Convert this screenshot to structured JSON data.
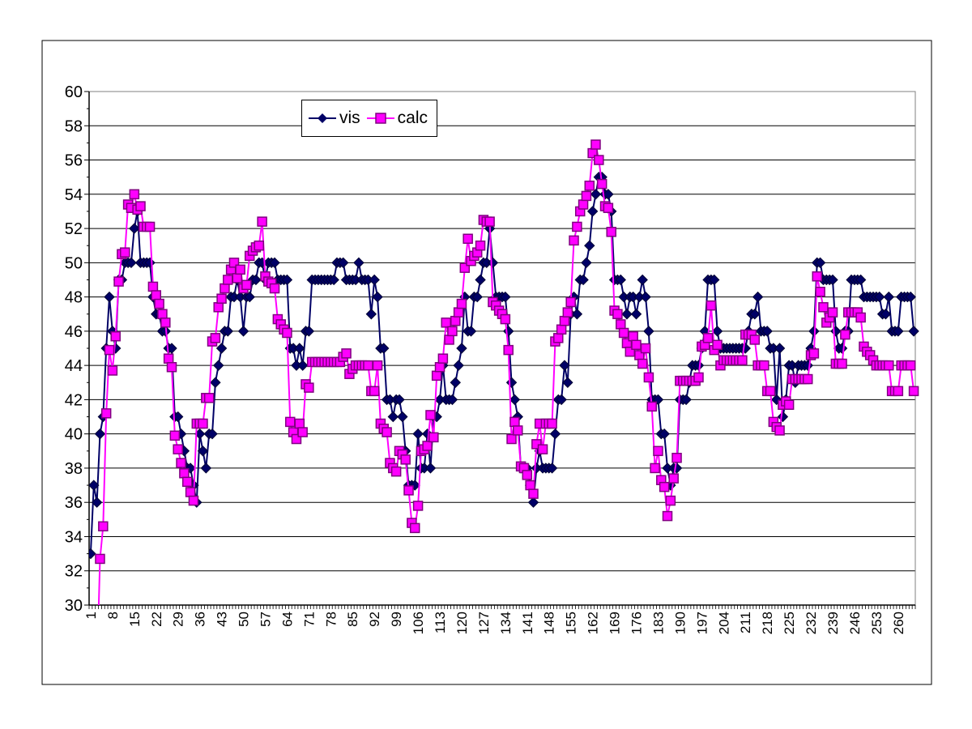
{
  "chart_data": {
    "type": "line",
    "title": "",
    "xlabel": "",
    "ylabel": "",
    "ylim": [
      30,
      60
    ],
    "yticks": [
      30,
      32,
      34,
      36,
      38,
      40,
      42,
      44,
      46,
      48,
      50,
      52,
      54,
      56,
      58,
      60
    ],
    "x_tick_labels": [
      "1",
      "8",
      "15",
      "22",
      "29",
      "36",
      "43",
      "50",
      "57",
      "64",
      "71",
      "78",
      "85",
      "92",
      "99",
      "106",
      "113",
      "120",
      "127",
      "134",
      "141",
      "148",
      "155",
      "162",
      "169",
      "176",
      "183",
      "190",
      "197",
      "204",
      "211",
      "218",
      "225",
      "232",
      "239",
      "246",
      "253",
      "260"
    ],
    "x_start": 1,
    "x_step": 1,
    "grid": "horizontal major gridlines",
    "legend_position": "top-left",
    "series": [
      {
        "name": "vis",
        "color": "#000066",
        "marker": "diamond",
        "values": [
          33,
          37,
          36,
          40,
          41,
          45,
          48,
          46,
          45,
          49,
          49,
          50,
          50,
          50,
          52,
          53,
          50,
          50,
          50,
          50,
          48,
          47,
          47,
          46,
          46,
          45,
          45,
          41,
          41,
          40,
          39,
          38,
          38,
          37,
          36,
          40,
          39,
          38,
          40,
          40,
          43,
          44,
          45,
          46,
          46,
          48,
          48,
          49,
          48,
          46,
          48,
          48,
          49,
          49,
          50,
          50,
          49,
          50,
          50,
          50,
          49,
          49,
          49,
          49,
          45,
          45,
          44,
          45,
          44,
          46,
          46,
          49,
          49,
          49,
          49,
          49,
          49,
          49,
          49,
          50,
          50,
          50,
          49,
          49,
          49,
          49,
          50,
          49,
          49,
          49,
          47,
          49,
          48,
          45,
          45,
          42,
          42,
          41,
          42,
          42,
          41,
          39,
          37,
          37,
          37,
          40,
          38,
          38,
          40,
          38,
          41,
          41,
          42,
          44,
          42,
          42,
          42,
          43,
          44,
          45,
          48,
          46,
          46,
          48,
          48,
          49,
          50,
          50,
          52,
          50,
          48,
          48,
          48,
          48,
          46,
          43,
          42,
          41,
          38,
          38,
          38,
          37,
          36,
          38,
          39,
          38,
          38,
          38,
          38,
          40,
          42,
          42,
          44,
          43,
          47,
          48,
          47,
          49,
          49,
          50,
          51,
          53,
          54,
          55,
          55,
          54,
          54,
          53,
          49,
          49,
          49,
          48,
          47,
          48,
          48,
          47,
          48,
          49,
          48,
          46,
          42,
          42,
          42,
          40,
          40,
          38,
          37,
          38,
          38,
          42,
          42,
          42,
          43,
          44,
          44,
          44,
          45,
          46,
          49,
          49,
          49,
          46,
          45,
          45,
          45,
          45,
          45,
          45,
          45,
          45,
          45,
          46,
          47,
          47,
          48,
          46,
          46,
          46,
          45,
          45,
          42,
          45,
          41,
          42,
          44,
          44,
          43,
          44,
          44,
          44,
          44,
          45,
          46,
          50,
          50,
          49,
          49,
          49,
          49,
          46,
          45,
          45,
          46,
          46,
          49,
          49,
          49,
          49,
          48,
          48,
          48,
          48,
          48,
          48,
          47,
          47,
          48,
          46,
          46,
          46,
          48,
          48,
          48,
          48,
          46
        ]
      },
      {
        "name": "calc",
        "color": "#FF00FF",
        "marker": "square",
        "values": [
          null,
          null,
          26,
          32.7,
          34.6,
          41.2,
          44.9,
          43.7,
          45.7,
          48.9,
          50.5,
          50.6,
          53.4,
          53.2,
          54.0,
          53.1,
          53.3,
          52.1,
          52.1,
          52.1,
          48.6,
          48.1,
          47.6,
          47.0,
          46.5,
          44.4,
          43.9,
          39.9,
          39.1,
          38.3,
          37.7,
          37.2,
          36.6,
          36.1,
          40.6,
          40.6,
          40.6,
          42.1,
          42.1,
          45.4,
          45.6,
          47.4,
          47.9,
          48.5,
          49.0,
          49.6,
          50.0,
          49.1,
          49.6,
          48.5,
          48.7,
          50.4,
          50.7,
          50.9,
          51.0,
          52.4,
          49.2,
          48.9,
          48.8,
          48.5,
          46.7,
          46.4,
          46.1,
          45.9,
          40.7,
          40.1,
          39.7,
          40.6,
          40.1,
          42.9,
          42.7,
          44.2,
          44.2,
          44.2,
          44.2,
          44.2,
          44.2,
          44.2,
          44.2,
          44.2,
          44.2,
          44.5,
          44.7,
          43.5,
          43.8,
          44.0,
          44.0,
          44.0,
          44.0,
          44.0,
          42.5,
          42.5,
          44.0,
          40.6,
          40.3,
          40.1,
          38.3,
          38.0,
          37.8,
          39.0,
          38.8,
          38.5,
          36.7,
          34.8,
          34.5,
          35.8,
          39.0,
          39.1,
          39.3,
          41.1,
          39.8,
          43.4,
          43.9,
          44.4,
          46.5,
          45.5,
          46.0,
          46.6,
          47.1,
          47.6,
          49.7,
          51.4,
          50.1,
          50.4,
          50.6,
          51.0,
          52.5,
          52.4,
          52.4,
          47.7,
          47.5,
          47.2,
          47.0,
          46.7,
          44.9,
          39.7,
          40.7,
          40.2,
          38.1,
          38.0,
          37.6,
          37.0,
          36.5,
          39.4,
          40.6,
          39.1,
          40.6,
          40.6,
          40.6,
          45.4,
          45.6,
          46.1,
          46.6,
          47.1,
          47.7,
          51.3,
          52.1,
          53.0,
          53.4,
          53.9,
          54.5,
          56.4,
          56.9,
          56.0,
          54.6,
          53.3,
          53.2,
          51.8,
          47.2,
          47.0,
          46.4,
          45.9,
          45.3,
          44.8,
          45.7,
          45.2,
          44.6,
          44.1,
          45.0,
          43.3,
          41.6,
          38.0,
          39.0,
          37.3,
          36.9,
          35.2,
          36.1,
          37.4,
          38.6,
          43.1,
          43.1,
          43.1,
          43.1,
          43.1,
          43.1,
          43.3,
          45.1,
          45.2,
          45.6,
          47.5,
          44.9,
          45.2,
          44.0,
          44.3,
          44.3,
          44.3,
          44.3,
          44.3,
          44.3,
          44.3,
          45.8,
          45.8,
          45.8,
          45.5,
          44.0,
          44.0,
          44.0,
          42.5,
          42.5,
          40.7,
          40.4,
          40.2,
          41.7,
          41.9,
          41.7,
          43.2,
          43.2,
          43.2,
          43.2,
          43.2,
          43.2,
          44.6,
          44.7,
          49.2,
          48.3,
          47.4,
          46.5,
          46.8,
          47.1,
          44.1,
          44.1,
          44.1,
          45.8,
          47.1,
          47.1,
          47.1,
          47.1,
          46.8,
          45.1,
          44.8,
          44.6,
          44.3,
          44.0,
          44.0,
          44.0,
          44.0,
          44.0,
          42.5,
          42.5,
          42.5,
          44.0,
          44.0,
          44.0,
          44.0,
          42.5
        ]
      }
    ]
  }
}
